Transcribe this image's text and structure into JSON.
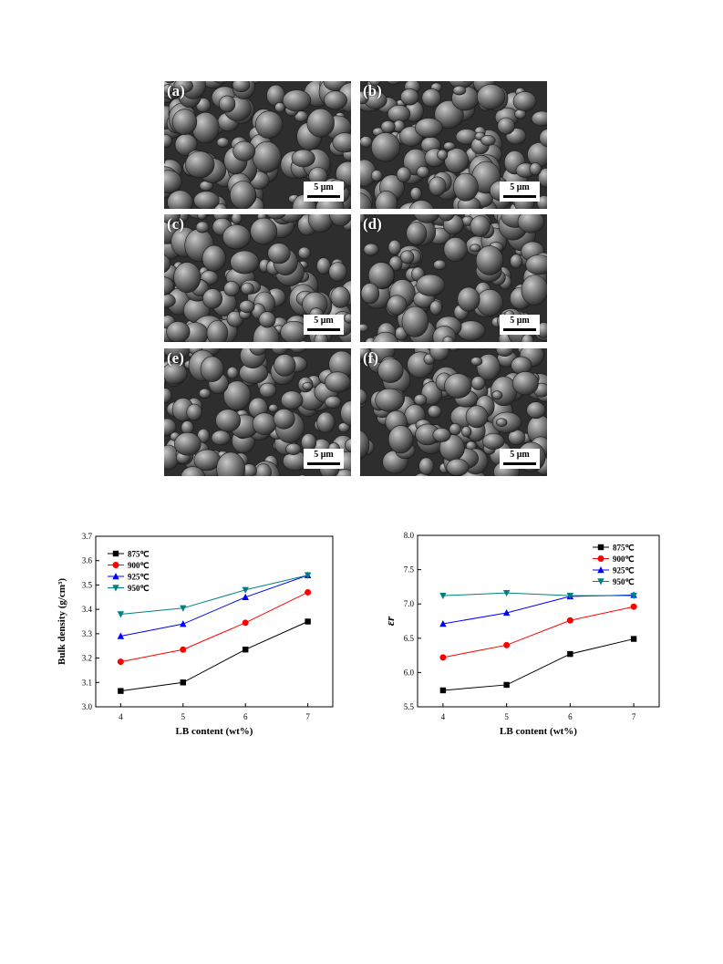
{
  "sem_panels": [
    {
      "label": "(a)",
      "scale_bar": "5 μm"
    },
    {
      "label": "(b)",
      "scale_bar": "5 μm"
    },
    {
      "label": "(c)",
      "scale_bar": "5 μm"
    },
    {
      "label": "(d)",
      "scale_bar": "5 μm"
    },
    {
      "label": "(e)",
      "scale_bar": "5 μm"
    },
    {
      "label": "(f)",
      "scale_bar": "5 μm"
    }
  ],
  "chart_data": [
    {
      "type": "line",
      "xlabel": "LB content (wt%)",
      "ylabel": "Bulk density (g/cm³)",
      "x": [
        4,
        5,
        6,
        7
      ],
      "xlim": [
        3.6,
        7.4
      ],
      "ylim": [
        3.0,
        3.7
      ],
      "xticks": [
        "4",
        "5",
        "6",
        "7"
      ],
      "yticks": [
        "3.0",
        "3.1",
        "3.2",
        "3.3",
        "3.4",
        "3.5",
        "3.6",
        "3.7"
      ],
      "legend_position": "top-left",
      "grid": false,
      "series": [
        {
          "name": "875℃",
          "color": "#000000",
          "marker": "square",
          "values": [
            3.065,
            3.1,
            3.235,
            3.35
          ]
        },
        {
          "name": "900℃",
          "color": "#ff0000",
          "marker": "circle",
          "values": [
            3.185,
            3.235,
            3.345,
            3.47
          ]
        },
        {
          "name": "925℃",
          "color": "#0000ff",
          "marker": "triangle-up",
          "values": [
            3.29,
            3.34,
            3.45,
            3.54
          ]
        },
        {
          "name": "950℃",
          "color": "#008080",
          "marker": "triangle-down",
          "values": [
            3.38,
            3.405,
            3.48,
            3.54
          ]
        }
      ]
    },
    {
      "type": "line",
      "xlabel": "LB content (wt%)",
      "ylabel": "εr",
      "x": [
        4,
        5,
        6,
        7
      ],
      "xlim": [
        3.6,
        7.4
      ],
      "ylim": [
        5.5,
        8.0
      ],
      "xticks": [
        "4",
        "5",
        "6",
        "7"
      ],
      "yticks": [
        "5.5",
        "6.0",
        "6.5",
        "7.0",
        "7.5",
        "8.0"
      ],
      "legend_position": "top-right",
      "grid": false,
      "series": [
        {
          "name": "875℃",
          "color": "#000000",
          "marker": "square",
          "values": [
            5.74,
            5.82,
            6.27,
            6.49
          ]
        },
        {
          "name": "900℃",
          "color": "#ff0000",
          "marker": "circle",
          "values": [
            6.22,
            6.4,
            6.76,
            6.96
          ]
        },
        {
          "name": "925℃",
          "color": "#0000ff",
          "marker": "triangle-up",
          "values": [
            6.71,
            6.87,
            7.11,
            7.13
          ]
        },
        {
          "name": "950℃",
          "color": "#008080",
          "marker": "triangle-down",
          "values": [
            7.12,
            7.16,
            7.12,
            7.12
          ]
        }
      ]
    }
  ]
}
